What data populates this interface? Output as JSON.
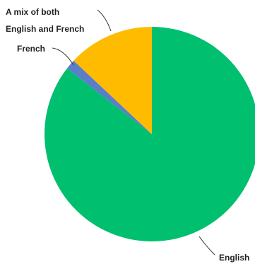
{
  "chart_data": {
    "type": "pie",
    "title": "",
    "slices": [
      {
        "label": "English",
        "value": 85.5,
        "color": "#00bf6f"
      },
      {
        "label": "French",
        "value": 1.5,
        "color": "#5a7fc8"
      },
      {
        "label": "A mix of both English and French",
        "label_lines": [
          "A mix of both",
          "English and French"
        ],
        "value": 13.0,
        "color": "#ffbb00"
      }
    ],
    "start_angle_deg": 0,
    "direction": "clockwise",
    "legend": "none",
    "label_style": "callout-leader-lines"
  }
}
